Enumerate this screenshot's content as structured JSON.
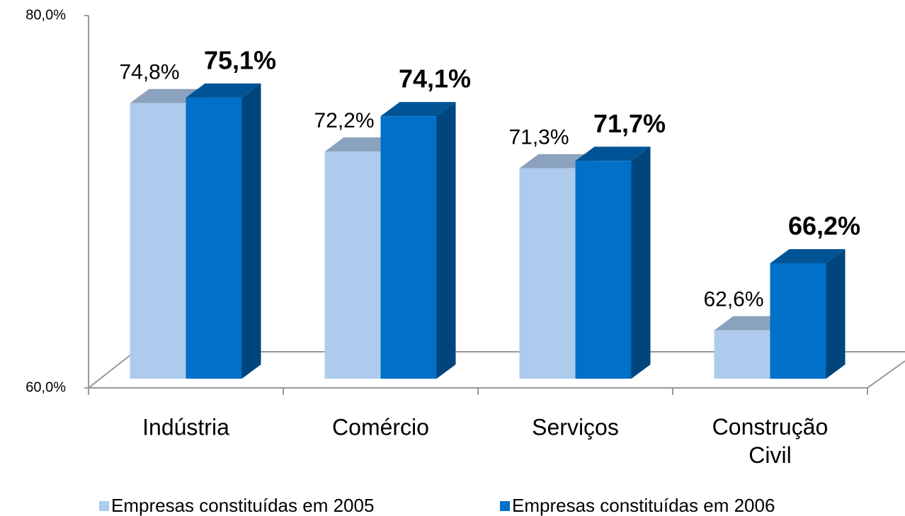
{
  "chart_data": {
    "type": "bar",
    "categories": [
      "Indústria",
      "Comércio",
      "Serviços",
      "Construção Civil"
    ],
    "series": [
      {
        "name": "Empresas constituídas em 2005",
        "color": "#aecbee",
        "values": [
          74.8,
          72.2,
          71.3,
          62.6
        ],
        "value_labels": [
          "74,8%",
          "72,2%",
          "71,3%",
          "62,6%"
        ]
      },
      {
        "name": "Empresas constituídas em 2006",
        "color": "#0070c8",
        "values": [
          75.1,
          74.1,
          71.7,
          66.2
        ],
        "value_labels": [
          "75,1%",
          "74,1%",
          "71,7%",
          "66,2%"
        ]
      }
    ],
    "ylim": [
      60,
      80
    ],
    "yticks": [
      {
        "value": 60,
        "label": "60,0%"
      },
      {
        "value": 80,
        "label": "80,0%"
      }
    ],
    "legend": "bottom"
  }
}
